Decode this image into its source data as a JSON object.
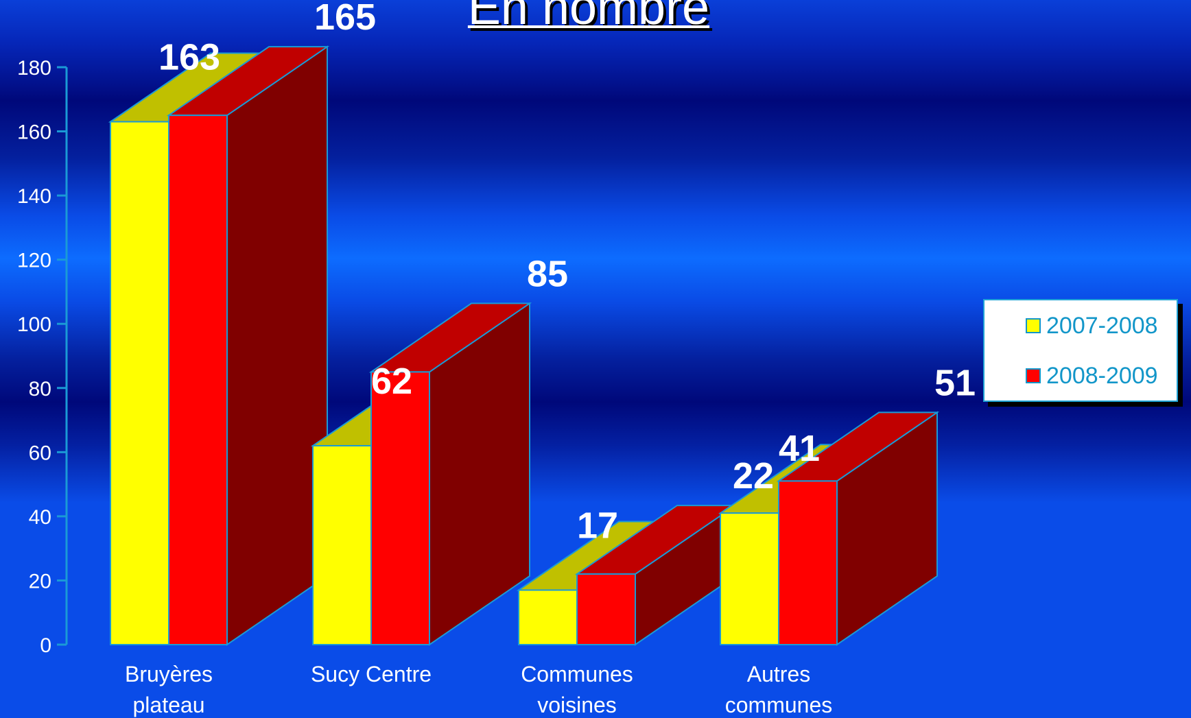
{
  "title": "En nombre",
  "chart_data": {
    "type": "bar",
    "categories": [
      [
        "Bruyères",
        "plateau"
      ],
      [
        "Sucy Centre"
      ],
      [
        "Communes",
        "voisines"
      ],
      [
        "Autres",
        "communes"
      ]
    ],
    "series": [
      {
        "name": "2007-2008",
        "values": [
          163,
          62,
          17,
          41
        ],
        "color": "#ffff00",
        "top_color": "#c0c000"
      },
      {
        "name": "2008-2009",
        "values": [
          165,
          85,
          22,
          51
        ],
        "color": "#ff0000",
        "top_color": "#c00000",
        "side_color": "#800000"
      }
    ],
    "ylim": [
      0,
      180
    ],
    "yticks": [
      0,
      20,
      40,
      60,
      80,
      100,
      120,
      140,
      160,
      180
    ],
    "legend_position": "right",
    "grid": false
  }
}
